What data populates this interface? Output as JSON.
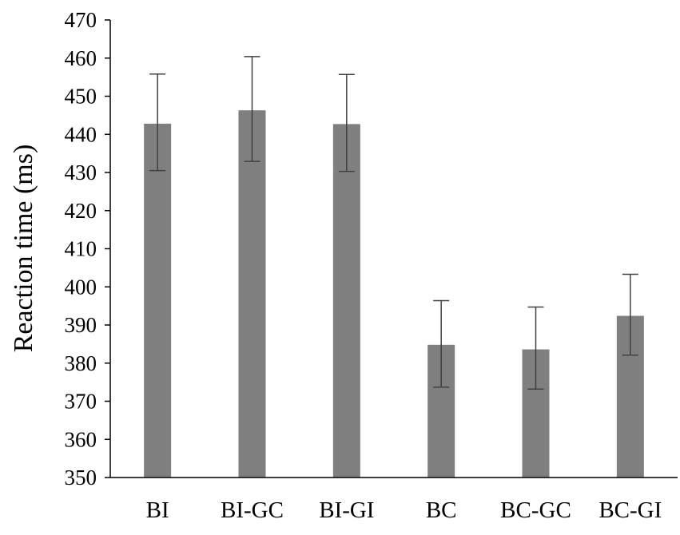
{
  "chart_data": {
    "type": "bar",
    "title": "",
    "xlabel": "",
    "ylabel": "Reaction time (ms)",
    "categories": [
      "BI",
      "BI-GC",
      "BI-GI",
      "BC",
      "BC-GC",
      "BC-GI"
    ],
    "values": [
      442.8,
      446.3,
      442.7,
      384.8,
      383.6,
      392.4
    ],
    "error_low": [
      430.5,
      432.9,
      430.3,
      373.7,
      373.2,
      382.1
    ],
    "error_high": [
      455.8,
      460.4,
      455.7,
      396.4,
      394.7,
      403.3
    ],
    "ylim": [
      350,
      470
    ],
    "yticks": [
      350,
      360,
      370,
      380,
      390,
      400,
      410,
      420,
      430,
      440,
      450,
      460,
      470
    ],
    "grid": false,
    "legend": "none",
    "bar_color": "#7f7f7f",
    "error_color": "#404040",
    "axis_color": "#000000"
  }
}
